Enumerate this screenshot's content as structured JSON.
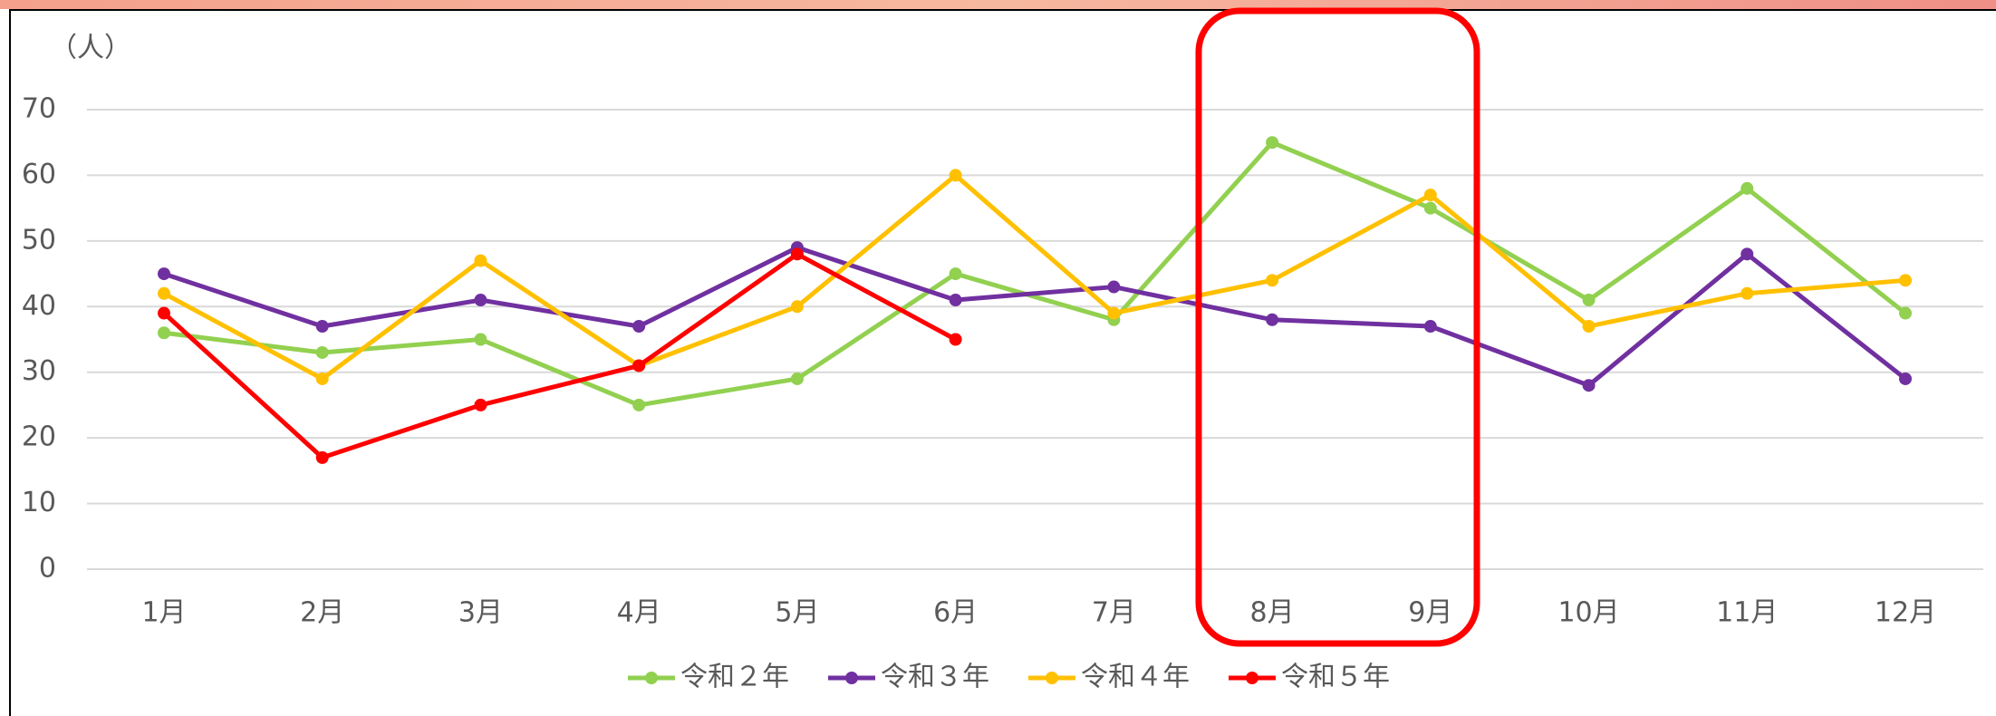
{
  "chart_data": {
    "type": "line",
    "y_unit_label": "（人）",
    "categories": [
      "1月",
      "2月",
      "3月",
      "4月",
      "5月",
      "6月",
      "7月",
      "8月",
      "9月",
      "10月",
      "11月",
      "12月"
    ],
    "series": [
      {
        "name": "令和２年",
        "color": "#92d050",
        "values": [
          36,
          33,
          35,
          25,
          29,
          45,
          38,
          65,
          55,
          41,
          58,
          39
        ]
      },
      {
        "name": "令和３年",
        "color": "#7030a0",
        "values": [
          45,
          37,
          41,
          37,
          49,
          41,
          43,
          38,
          37,
          28,
          48,
          29
        ]
      },
      {
        "name": "令和４年",
        "color": "#ffc000",
        "values": [
          42,
          29,
          47,
          31,
          40,
          60,
          39,
          44,
          57,
          37,
          42,
          44
        ]
      },
      {
        "name": "令和５年",
        "color": "#ff0000",
        "values": [
          39,
          17,
          25,
          31,
          48,
          35,
          null,
          null,
          null,
          null,
          null,
          null
        ]
      }
    ],
    "ylim": [
      0,
      70
    ],
    "yticks": [
      0,
      10,
      20,
      30,
      40,
      50,
      60,
      70
    ],
    "grid": true,
    "legend": "bottom"
  }
}
